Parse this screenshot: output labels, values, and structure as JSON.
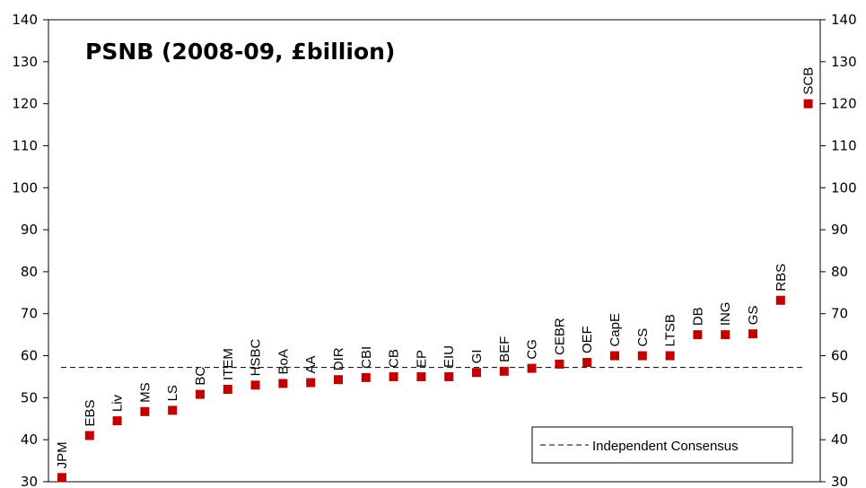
{
  "chart_data": {
    "type": "scatter",
    "title": "PSNB (2008-09, £billion)",
    "xlabel": "",
    "ylabel": "",
    "ylim": [
      30,
      140
    ],
    "y_ticks": [
      30,
      40,
      50,
      60,
      70,
      80,
      90,
      100,
      110,
      120,
      130,
      140
    ],
    "y_tick_labels": [
      "30",
      "40",
      "50",
      "60",
      "70",
      "80",
      "90",
      "100",
      "110",
      "120",
      "130",
      "140"
    ],
    "grid": false,
    "legend_position": "bottom-right",
    "marker_color": "#c00000",
    "consensus_color": "#000000",
    "series": [
      {
        "labels": [
          "JPM",
          "EBS",
          "Liv",
          "MS",
          "LS",
          "BC",
          "ITEM",
          "HSBC",
          "BoA",
          "AA",
          "DIR",
          "CBI",
          "CB",
          "EP",
          "EIU",
          "GI",
          "BEF",
          "CG",
          "CEBR",
          "OEF",
          "CapE",
          "CS",
          "LTSB",
          "DB",
          "ING",
          "GS",
          "RBS",
          "SCB"
        ],
        "values": [
          31,
          41,
          44.5,
          46.7,
          47,
          50.8,
          52,
          53,
          53.4,
          53.6,
          54.3,
          54.8,
          55,
          55,
          55,
          56,
          56.3,
          57,
          58,
          58.4,
          60,
          60,
          60,
          65,
          65,
          65.2,
          73.2,
          120
        ]
      }
    ],
    "reference_lines": [
      {
        "name": "Independent Consensus",
        "value": 57.2,
        "style": "dashed"
      }
    ]
  }
}
